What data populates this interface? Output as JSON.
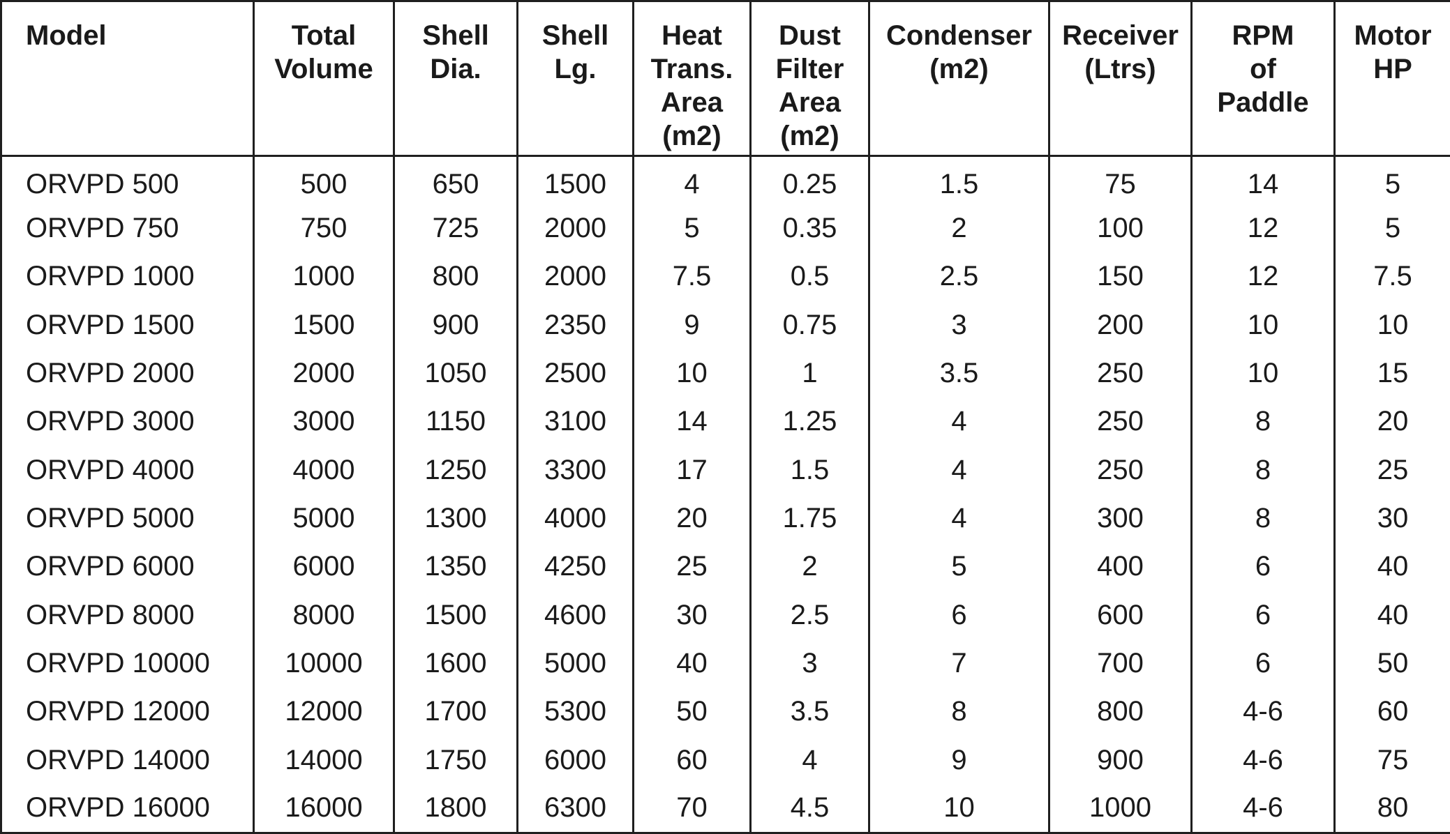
{
  "table": {
    "headers": [
      "Model",
      "Total\nVolume",
      "Shell\nDia.",
      "Shell\nLg.",
      "Heat\nTrans.\nArea\n(m2)",
      "Dust\nFilter\nArea\n(m2)",
      "Condenser\n(m2)",
      "Receiver\n(Ltrs)",
      "RPM\nof\nPaddle",
      "Motor\nHP"
    ],
    "rows": [
      [
        "ORVPD 500",
        "500",
        "650",
        "1500",
        "4",
        "0.25",
        "1.5",
        "75",
        "14",
        "5"
      ],
      [
        "ORVPD 750",
        "750",
        "725",
        "2000",
        "5",
        "0.35",
        "2",
        "100",
        "12",
        "5"
      ],
      [
        "ORVPD 1000",
        "1000",
        "800",
        "2000",
        "7.5",
        "0.5",
        "2.5",
        "150",
        "12",
        "7.5"
      ],
      [
        "ORVPD 1500",
        "1500",
        "900",
        "2350",
        "9",
        "0.75",
        "3",
        "200",
        "10",
        "10"
      ],
      [
        "ORVPD 2000",
        "2000",
        "1050",
        "2500",
        "10",
        "1",
        "3.5",
        "250",
        "10",
        "15"
      ],
      [
        "ORVPD 3000",
        "3000",
        "1150",
        "3100",
        "14",
        "1.25",
        "4",
        "250",
        "8",
        "20"
      ],
      [
        "ORVPD 4000",
        "4000",
        "1250",
        "3300",
        "17",
        "1.5",
        "4",
        "250",
        "8",
        "25"
      ],
      [
        "ORVPD 5000",
        "5000",
        "1300",
        "4000",
        "20",
        "1.75",
        "4",
        "300",
        "8",
        "30"
      ],
      [
        "ORVPD 6000",
        "6000",
        "1350",
        "4250",
        "25",
        "2",
        "5",
        "400",
        "6",
        "40"
      ],
      [
        "ORVPD 8000",
        "8000",
        "1500",
        "4600",
        "30",
        "2.5",
        "6",
        "600",
        "6",
        "40"
      ],
      [
        "ORVPD 10000",
        "10000",
        "1600",
        "5000",
        "40",
        "3",
        "7",
        "700",
        "6",
        "50"
      ],
      [
        "ORVPD 12000",
        "12000",
        "1700",
        "5300",
        "50",
        "3.5",
        "8",
        "800",
        "4-6",
        "60"
      ],
      [
        "ORVPD 14000",
        "14000",
        "1750",
        "6000",
        "60",
        "4",
        "9",
        "900",
        "4-6",
        "75"
      ],
      [
        "ORVPD 16000",
        "16000",
        "1800",
        "6300",
        "70",
        "4.5",
        "10",
        "1000",
        "4-6",
        "80"
      ]
    ]
  }
}
